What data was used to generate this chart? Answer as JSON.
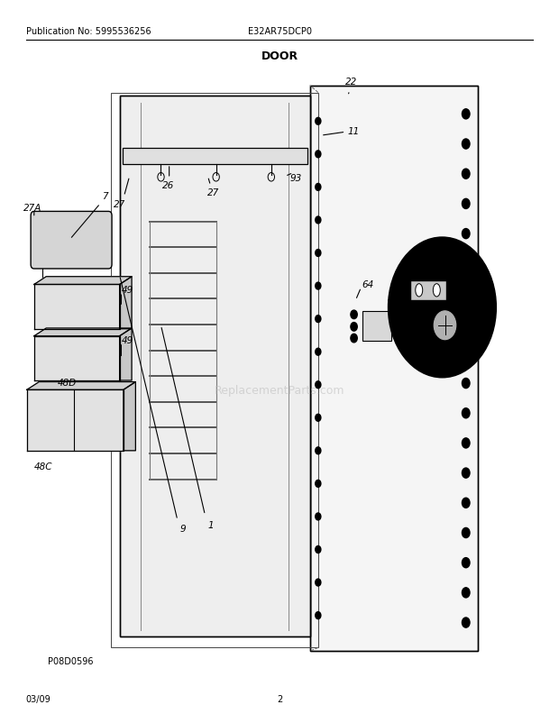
{
  "title": "DOOR",
  "pub_no": "Publication No: 5995536256",
  "model": "E32AR75DCP0",
  "date": "03/09",
  "page": "2",
  "watermark": "ReplacementParts.com",
  "p08": "P08D0596",
  "bg_color": "#ffffff",
  "line_color": "#000000"
}
